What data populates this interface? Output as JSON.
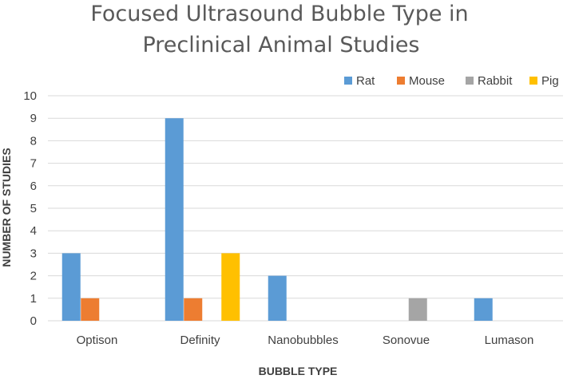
{
  "chart_data": {
    "type": "bar",
    "title_lines": [
      "Focused Ultrasound Bubble Type in",
      "Preclinical Animal Studies"
    ],
    "xlabel": "BUBBLE TYPE",
    "ylabel": "NUMBER OF STUDIES",
    "ylim": [
      0,
      10
    ],
    "yticks": [
      "0",
      "1",
      "2",
      "3",
      "4",
      "5",
      "6",
      "7",
      "8",
      "9",
      "10"
    ],
    "grid": true,
    "legend_position": "top-right",
    "categories": [
      "Optison",
      "Definity",
      "Nanobubbles",
      "Sonovue",
      "Lumason"
    ],
    "series": [
      {
        "name": "Rat",
        "color": "#5B9BD5",
        "values": [
          3,
          9,
          2,
          0,
          1
        ]
      },
      {
        "name": "Mouse",
        "color": "#ED7D31",
        "values": [
          1,
          1,
          0,
          0,
          0
        ]
      },
      {
        "name": "Rabbit",
        "color": "#A5A5A5",
        "values": [
          0,
          0,
          0,
          1,
          0
        ]
      },
      {
        "name": "Pig",
        "color": "#FFC000",
        "values": [
          0,
          3,
          0,
          0,
          0
        ]
      }
    ]
  }
}
